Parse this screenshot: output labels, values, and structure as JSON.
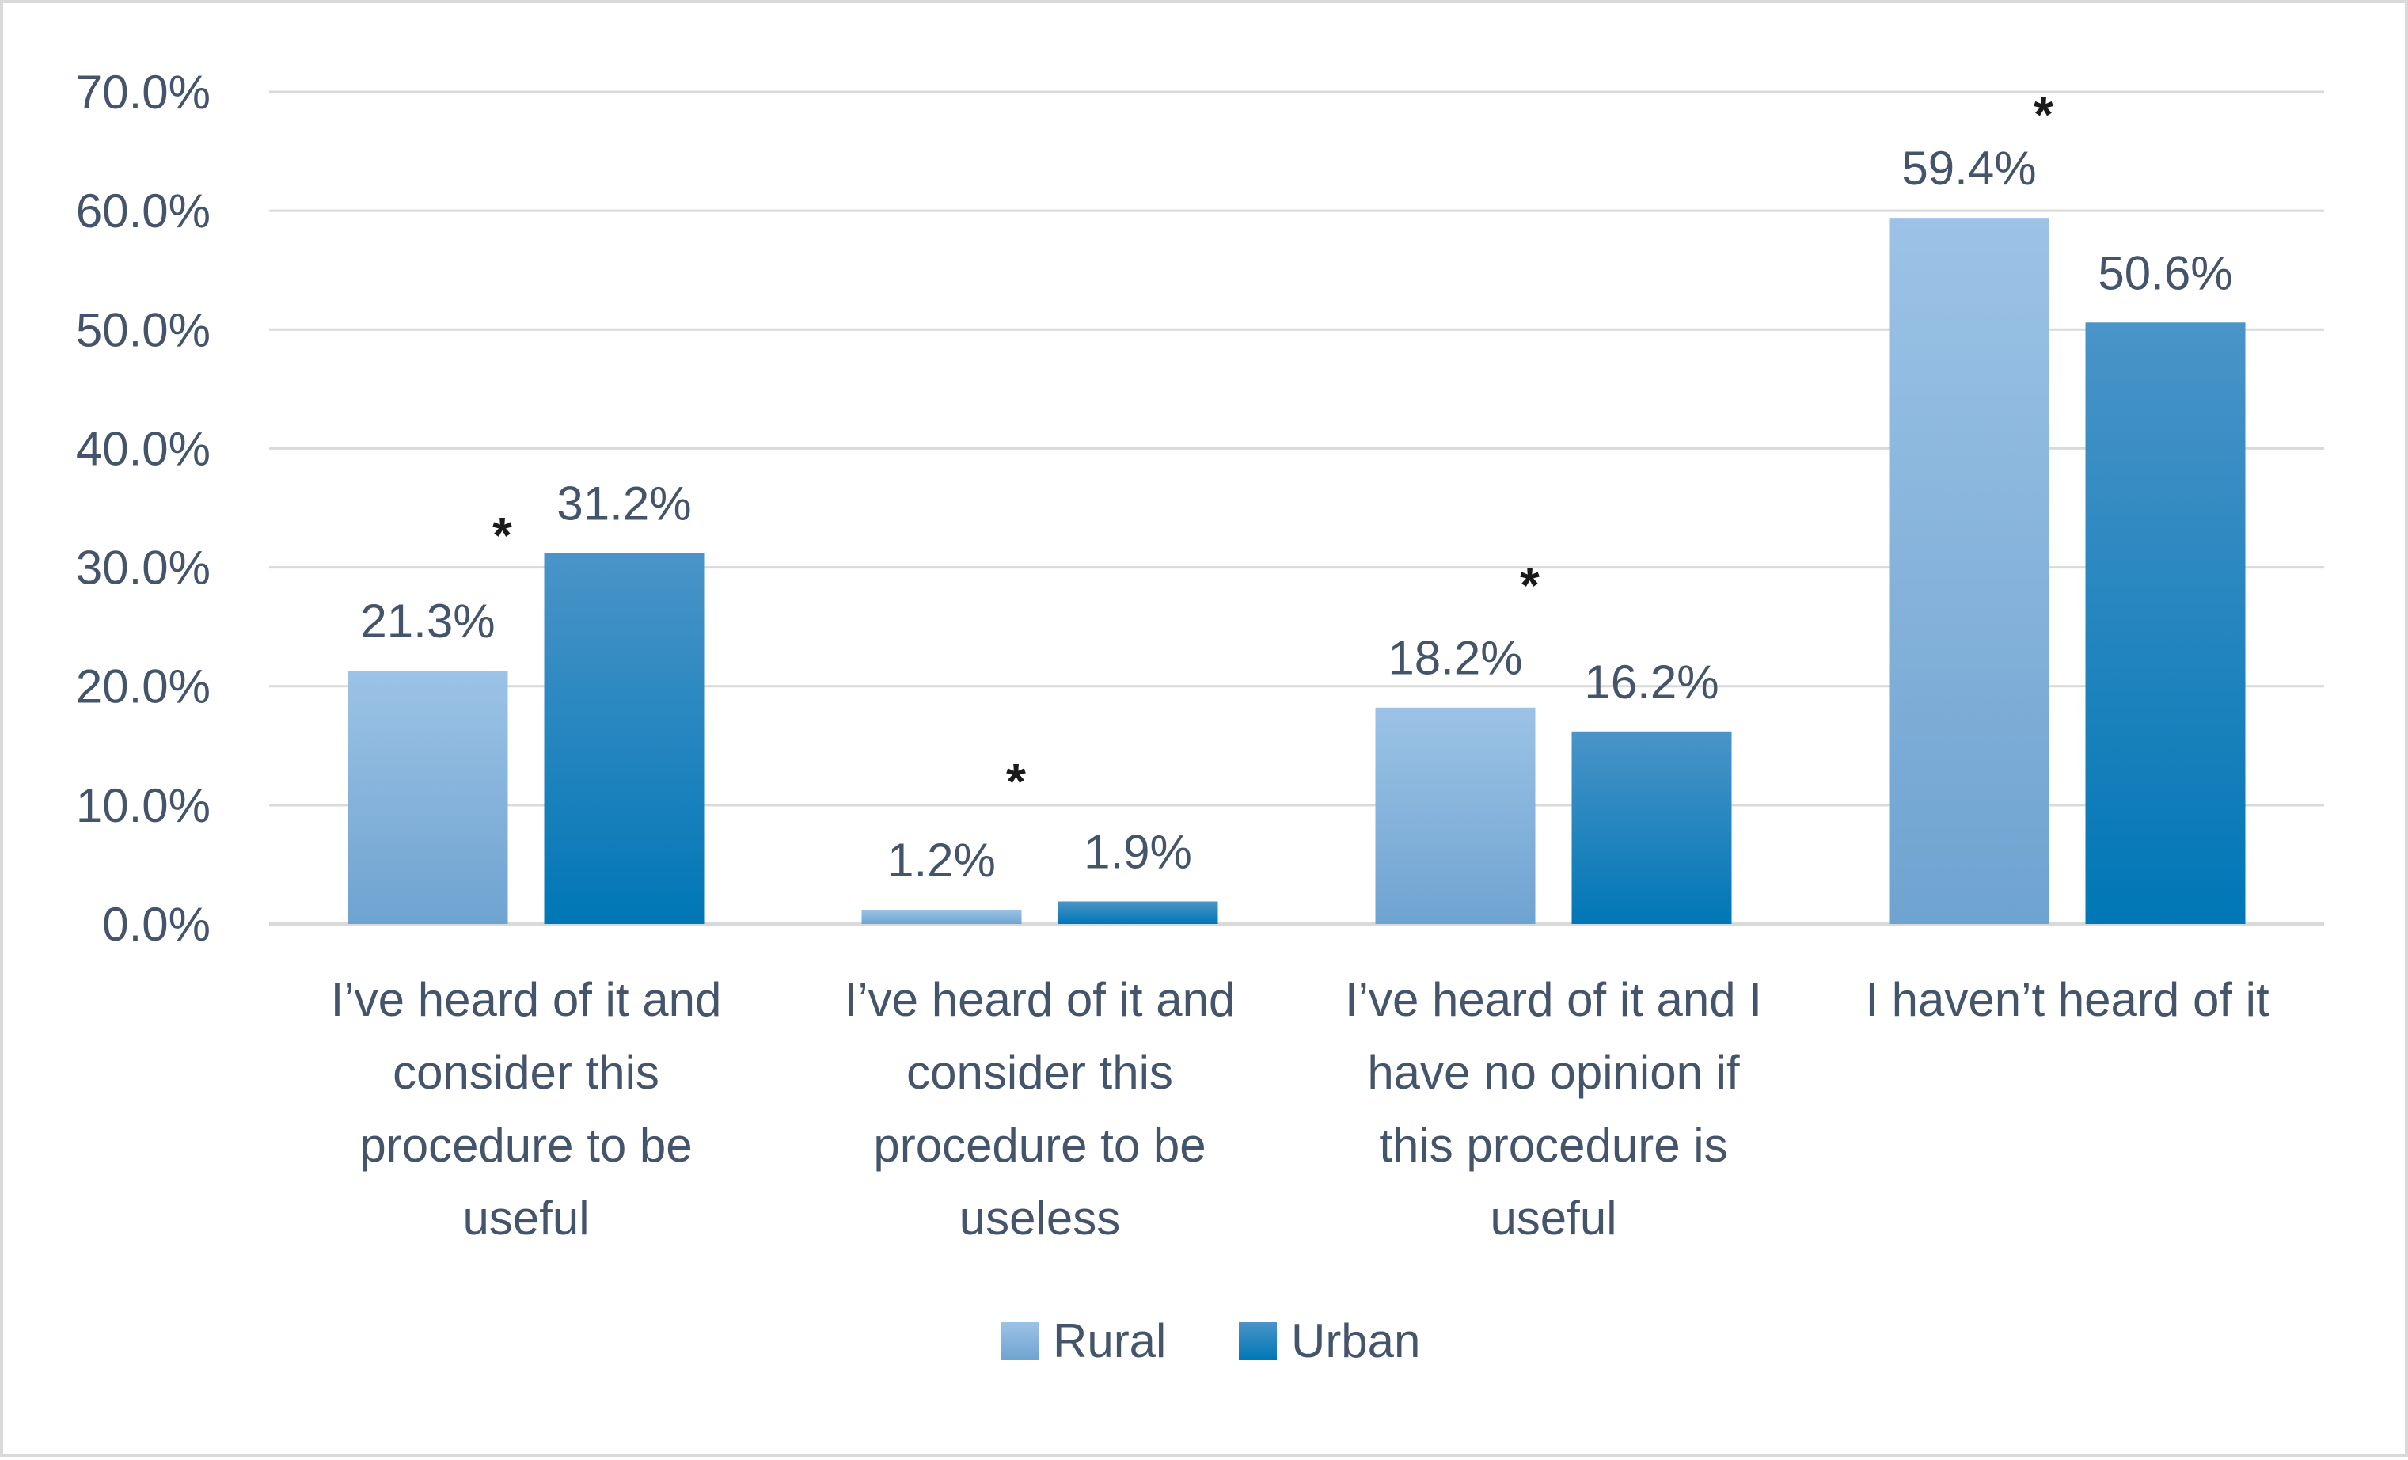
{
  "chart_data": {
    "type": "bar",
    "title": "",
    "xlabel": "",
    "ylabel": "",
    "ylim": [
      0,
      70
    ],
    "yticks": [
      0,
      10,
      20,
      30,
      40,
      50,
      60,
      70
    ],
    "ytick_labels": [
      "0.0%",
      "10.0%",
      "20.0%",
      "30.0%",
      "40.0%",
      "50.0%",
      "60.0%",
      "70.0%"
    ],
    "grid": true,
    "legend_position": "bottom",
    "categories": [
      [
        "I’ve heard of it and",
        "consider this",
        "procedure to be",
        "useful"
      ],
      [
        "I’ve heard of it and",
        "consider this",
        "procedure to be",
        "useless"
      ],
      [
        "I’ve heard of it and I",
        "have no opinion if",
        "this procedure is",
        "useful"
      ],
      [
        "I haven’t heard of it"
      ]
    ],
    "series": [
      {
        "name": "Rural",
        "values": [
          21.3,
          1.2,
          18.2,
          59.4
        ],
        "labels": [
          "21.3%",
          "1.2%",
          "18.2%",
          "59.4%"
        ],
        "color_top": "#9cc3e6",
        "color_bottom": "#6fa3d0"
      },
      {
        "name": "Urban",
        "values": [
          31.2,
          1.9,
          16.2,
          50.6
        ],
        "labels": [
          "31.2%",
          "1.9%",
          "16.2%",
          "50.6%"
        ],
        "color_top": "#4a94c8",
        "color_bottom": "#0077b6"
      }
    ],
    "significance": [
      {
        "category_index": 0,
        "label": "*",
        "value": 33.5
      },
      {
        "category_index": 1,
        "label": "*",
        "value": 12.8
      },
      {
        "category_index": 2,
        "label": "*",
        "value": 29.3
      },
      {
        "category_index": 3,
        "label": "*",
        "value": 68.9
      }
    ]
  }
}
